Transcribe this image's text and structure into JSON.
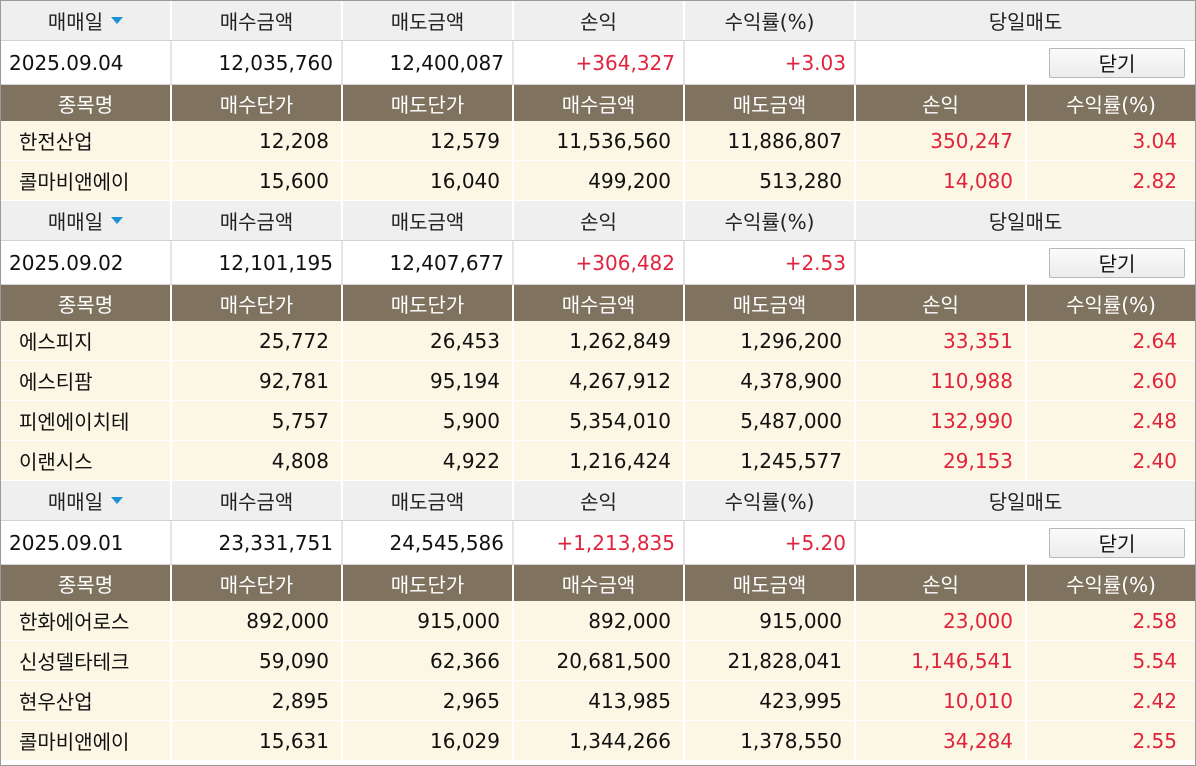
{
  "summary_headers": {
    "trade_date": "매매일",
    "buy_amount": "매수금액",
    "sell_amount": "매도금액",
    "profit": "손익",
    "return_rate": "수익률(%)",
    "same_day_sell": "당일매도"
  },
  "detail_headers": {
    "name": "종목명",
    "buy_price": "매수단가",
    "sell_price": "매도단가",
    "buy_amount": "매수금액",
    "sell_amount": "매도금액",
    "profit": "손익",
    "return_rate": "수익률(%)"
  },
  "close_label": "닫기",
  "sort_icon": "sort-desc-icon",
  "colors": {
    "profit_red": "#e0243c",
    "detail_header_bg": "#7f7360",
    "detail_row_bg": "#fbf7e4"
  },
  "groups": [
    {
      "date": "2025.09.04",
      "buy_amount": "12,035,760",
      "sell_amount": "12,400,087",
      "profit": "+364,327",
      "return_rate": "+3.03",
      "rows": [
        {
          "name": "한전산업",
          "buy_price": "12,208",
          "sell_price": "12,579",
          "buy_amount": "11,536,560",
          "sell_amount": "11,886,807",
          "profit": "350,247",
          "return_rate": "3.04"
        },
        {
          "name": "콜마비앤에이",
          "buy_price": "15,600",
          "sell_price": "16,040",
          "buy_amount": "499,200",
          "sell_amount": "513,280",
          "profit": "14,080",
          "return_rate": "2.82"
        }
      ]
    },
    {
      "date": "2025.09.02",
      "buy_amount": "12,101,195",
      "sell_amount": "12,407,677",
      "profit": "+306,482",
      "return_rate": "+2.53",
      "rows": [
        {
          "name": "에스피지",
          "buy_price": "25,772",
          "sell_price": "26,453",
          "buy_amount": "1,262,849",
          "sell_amount": "1,296,200",
          "profit": "33,351",
          "return_rate": "2.64"
        },
        {
          "name": "에스티팜",
          "buy_price": "92,781",
          "sell_price": "95,194",
          "buy_amount": "4,267,912",
          "sell_amount": "4,378,900",
          "profit": "110,988",
          "return_rate": "2.60"
        },
        {
          "name": "피엔에이치테",
          "buy_price": "5,757",
          "sell_price": "5,900",
          "buy_amount": "5,354,010",
          "sell_amount": "5,487,000",
          "profit": "132,990",
          "return_rate": "2.48"
        },
        {
          "name": "이랜시스",
          "buy_price": "4,808",
          "sell_price": "4,922",
          "buy_amount": "1,216,424",
          "sell_amount": "1,245,577",
          "profit": "29,153",
          "return_rate": "2.40"
        }
      ]
    },
    {
      "date": "2025.09.01",
      "buy_amount": "23,331,751",
      "sell_amount": "24,545,586",
      "profit": "+1,213,835",
      "return_rate": "+5.20",
      "rows": [
        {
          "name": "한화에어로스",
          "buy_price": "892,000",
          "sell_price": "915,000",
          "buy_amount": "892,000",
          "sell_amount": "915,000",
          "profit": "23,000",
          "return_rate": "2.58"
        },
        {
          "name": "신성델타테크",
          "buy_price": "59,090",
          "sell_price": "62,366",
          "buy_amount": "20,681,500",
          "sell_amount": "21,828,041",
          "profit": "1,146,541",
          "return_rate": "5.54"
        },
        {
          "name": "현우산업",
          "buy_price": "2,895",
          "sell_price": "2,965",
          "buy_amount": "413,985",
          "sell_amount": "423,995",
          "profit": "10,010",
          "return_rate": "2.42"
        },
        {
          "name": "콜마비앤에이",
          "buy_price": "15,631",
          "sell_price": "16,029",
          "buy_amount": "1,344,266",
          "sell_amount": "1,378,550",
          "profit": "34,284",
          "return_rate": "2.55"
        }
      ]
    }
  ]
}
